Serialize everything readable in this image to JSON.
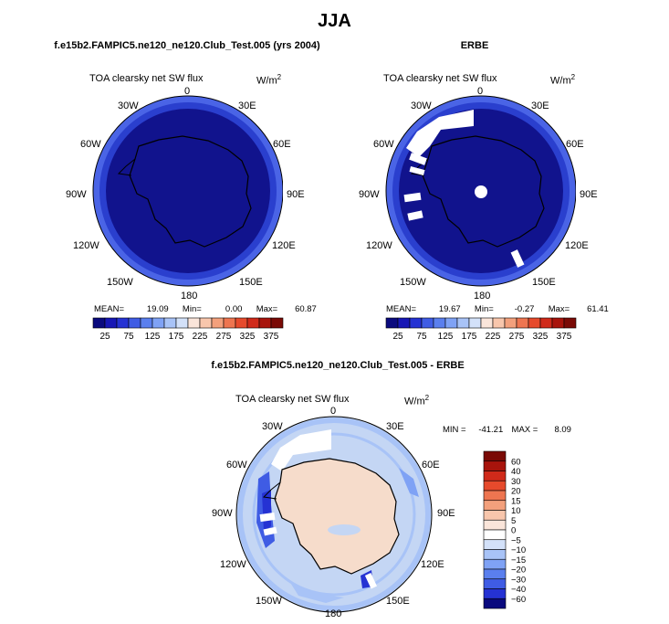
{
  "main_title": "JJA",
  "colors": {
    "ocean_model": "#2a3fce",
    "ocean_edge": "#4a64e6",
    "land_dark": "#11138d",
    "diff_land": "#f6dccb",
    "diff_ocean": "#c4d6f4"
  },
  "panels": [
    {
      "id": "model",
      "title": "f.e15b2.FAMPIC5.ne120_ne120.Club_Test.005 (yrs 2004)",
      "plot_title": "TOA clearsky net SW flux",
      "units": "W/m",
      "units_exp": "2",
      "lon_labels": [
        "0",
        "30E",
        "60E",
        "90E",
        "120E",
        "150E",
        "180",
        "150W",
        "120W",
        "90W",
        "60W",
        "30W"
      ],
      "stats": {
        "mean_label": "MEAN=",
        "mean": "19.09",
        "min_label": "Min=",
        "min": "0.00",
        "max_label": "Max=",
        "max": "60.87"
      }
    },
    {
      "id": "obs",
      "title": "ERBE",
      "plot_title": "TOA clearsky net SW flux",
      "units": "W/m",
      "units_exp": "2",
      "lon_labels": [
        "0",
        "30E",
        "60E",
        "90E",
        "120E",
        "150E",
        "180",
        "150W",
        "120W",
        "90W",
        "60W",
        "30W"
      ],
      "stats": {
        "mean_label": "MEAN=",
        "mean": "19.67",
        "min_label": "Min=",
        "min": "-0.27",
        "max_label": "Max=",
        "max": "61.41"
      }
    },
    {
      "id": "diff",
      "title": "f.e15b2.FAMPIC5.ne120_ne120.Club_Test.005 - ERBE",
      "plot_title": "TOA clearsky net SW flux",
      "units": "W/m",
      "units_exp": "2",
      "lon_labels": [
        "0",
        "30E",
        "60E",
        "90E",
        "120E",
        "150E",
        "180",
        "150W",
        "120W",
        "90W",
        "60W",
        "30W"
      ],
      "stats": {
        "min_label": "MIN =",
        "min": "-41.21",
        "max_label": "MAX =",
        "max": "8.09"
      }
    }
  ],
  "chart_data": [
    {
      "type": "heatmap",
      "projection": "south polar stereographic",
      "title": "TOA clearsky net SW flux",
      "units": "W/m^2",
      "mean": 19.09,
      "min": 0.0,
      "max": 60.87,
      "colorbar": {
        "orientation": "horizontal",
        "levels": [
          25,
          50,
          75,
          100,
          125,
          150,
          175,
          200,
          225,
          250,
          275,
          300,
          325,
          350,
          375
        ],
        "tick_labels": [
          "25",
          "75",
          "125",
          "175",
          "225",
          "275",
          "325",
          "375"
        ],
        "colors": [
          "#0a0a7e",
          "#1717b5",
          "#2532d3",
          "#3f5ce4",
          "#5a7fee",
          "#7fa2f5",
          "#a8c3f7",
          "#d3e1f9",
          "#fae5da",
          "#f8c6ac",
          "#f3a07c",
          "#ee7550",
          "#e64a2c",
          "#d02a1a",
          "#a8140c",
          "#7a0a06"
        ]
      }
    },
    {
      "type": "heatmap",
      "projection": "south polar stereographic",
      "title": "TOA clearsky net SW flux",
      "units": "W/m^2",
      "mean": 19.67,
      "min": -0.27,
      "max": 61.41,
      "colorbar": {
        "orientation": "horizontal",
        "levels": [
          25,
          50,
          75,
          100,
          125,
          150,
          175,
          200,
          225,
          250,
          275,
          300,
          325,
          350,
          375
        ],
        "tick_labels": [
          "25",
          "75",
          "125",
          "175",
          "225",
          "275",
          "325",
          "375"
        ],
        "colors": [
          "#0a0a7e",
          "#1717b5",
          "#2532d3",
          "#3f5ce4",
          "#5a7fee",
          "#7fa2f5",
          "#a8c3f7",
          "#d3e1f9",
          "#fae5da",
          "#f8c6ac",
          "#f3a07c",
          "#ee7550",
          "#e64a2c",
          "#d02a1a",
          "#a8140c",
          "#7a0a06"
        ]
      }
    },
    {
      "type": "heatmap",
      "projection": "south polar stereographic",
      "title": "TOA clearsky net SW flux",
      "units": "W/m^2",
      "min": -41.21,
      "max": 8.09,
      "colorbar": {
        "orientation": "vertical",
        "levels": [
          60,
          40,
          30,
          20,
          15,
          10,
          5,
          0,
          -5,
          -10,
          -15,
          -20,
          -30,
          -40,
          -60
        ],
        "tick_labels": [
          "60",
          "40",
          "30",
          "20",
          "15",
          "10",
          "5",
          "0",
          "−5",
          "−10",
          "−15",
          "−20",
          "−30",
          "−40",
          "−60"
        ],
        "colors": [
          "#7a0a06",
          "#a8140c",
          "#d02a1a",
          "#e64a2c",
          "#ee7550",
          "#f3a07c",
          "#f8c6ac",
          "#fae5da",
          "#ffffff",
          "#d3e1f9",
          "#a8c3f7",
          "#7fa2f5",
          "#5a7fee",
          "#3f5ce4",
          "#2532d3",
          "#0a0a7e"
        ]
      }
    }
  ]
}
